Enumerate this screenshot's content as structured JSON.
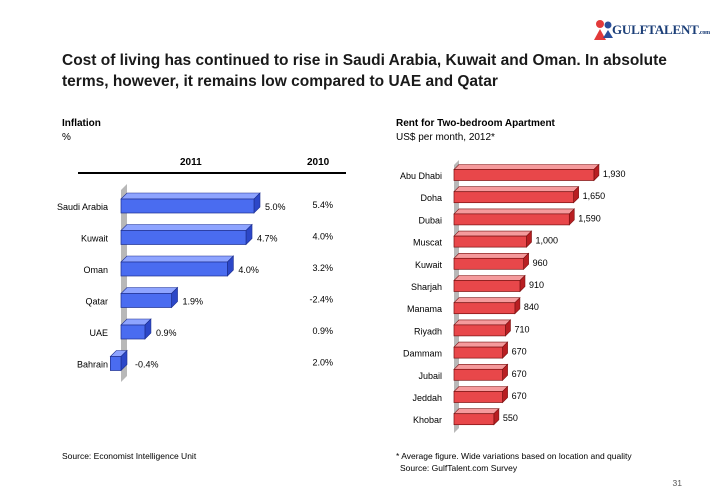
{
  "logo": {
    "text_main": "GULFTALENT",
    "text_suffix": ".com"
  },
  "headline": "Cost of living has continued to rise in Saudi Arabia, Kuwait and Oman. In absolute terms, however, it remains low compared to UAE and Qatar",
  "page_number": "31",
  "colors": {
    "blue_bar": "#4a6cf0",
    "red_bar": "#e8474a",
    "axis_shadow": "#b8b8b8"
  },
  "chart_data": [
    {
      "type": "bar",
      "orientation": "horizontal",
      "title": "Inflation",
      "ylabel": "%",
      "column_headers": {
        "current": "2011",
        "previous": "2010"
      },
      "categories": [
        "Saudi Arabia",
        "Kuwait",
        "Oman",
        "Qatar",
        "UAE",
        "Bahrain"
      ],
      "series": [
        {
          "name": "2011",
          "values": [
            5.0,
            4.7,
            4.0,
            1.9,
            0.9,
            -0.4
          ],
          "labels": [
            "5.0%",
            "4.7%",
            "4.0%",
            "1.9%",
            "0.9%",
            "-0.4%"
          ]
        },
        {
          "name": "2010",
          "values": [
            5.4,
            4.0,
            3.2,
            -2.4,
            0.9,
            2.0
          ],
          "labels": [
            "5.4%",
            "4.0%",
            "3.2%",
            "-2.4%",
            "0.9%",
            "2.0%"
          ]
        }
      ],
      "source": "Source:  Economist Intelligence Unit"
    },
    {
      "type": "bar",
      "orientation": "horizontal",
      "title": "Rent for Two-bedroom Apartment",
      "ylabel": "US$ per month, 2012*",
      "categories": [
        "Abu Dhabi",
        "Doha",
        "Dubai",
        "Muscat",
        "Kuwait",
        "Sharjah",
        "Manama",
        "Riyadh",
        "Dammam",
        "Jubail",
        "Jeddah",
        "Khobar"
      ],
      "values": [
        1930,
        1650,
        1590,
        1000,
        960,
        910,
        840,
        710,
        670,
        670,
        670,
        550
      ],
      "labels": [
        "1,930",
        "1,650",
        "1,590",
        "1,000",
        "960",
        "910",
        "840",
        "710",
        "670",
        "670",
        "670",
        "550"
      ],
      "note": "*   Average figure. Wide variations based on location and quality",
      "source": "Source:  GulfTalent.com Survey"
    }
  ]
}
